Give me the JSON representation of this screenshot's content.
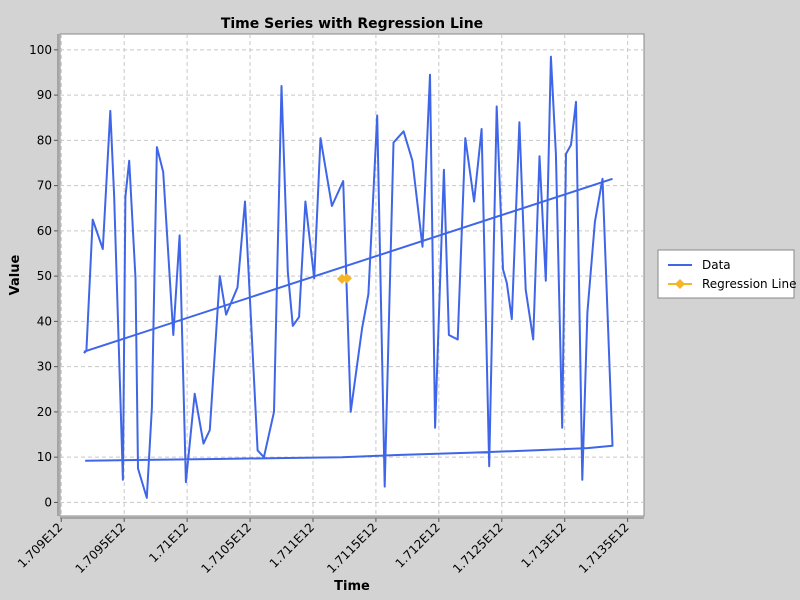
{
  "chart_data": {
    "type": "line",
    "title": "Time Series with Regression Line",
    "xlabel": "Time",
    "ylabel": "Value",
    "x_ticks": [
      "1.709E12",
      "1.7095E12",
      "1.71E12",
      "1.7105E12",
      "1.711E12",
      "1.7115E12",
      "1.712E12",
      "1.7125E12",
      "1.713E12",
      "1.7135E12"
    ],
    "x_tick_values": [
      1709000000000,
      1709500000000,
      1710000000000,
      1710500000000,
      1711000000000,
      1711500000000,
      1712000000000,
      1712500000000,
      1713000000000,
      1713500000000
    ],
    "y_ticks": [
      "0",
      "10",
      "20",
      "30",
      "40",
      "50",
      "60",
      "70",
      "80",
      "90",
      "100"
    ],
    "y_tick_values": [
      0,
      10,
      20,
      30,
      40,
      50,
      60,
      70,
      80,
      90,
      100
    ],
    "xlim": [
      1708990000000,
      1713630000000
    ],
    "ylim": [
      -3,
      103.5
    ],
    "grid": true,
    "legend_position": "right",
    "series": [
      {
        "name": "Data",
        "color": "#3f66e8",
        "x": [
          1709180000000,
          1709200000000,
          1709250000000,
          1709330000000,
          1709390000000,
          1709420000000,
          1709490000000,
          1709510000000,
          1709540000000,
          1709590000000,
          1709610000000,
          1709680000000,
          1709720000000,
          1709760000000,
          1709810000000,
          1709890000000,
          1709940000000,
          1709990000000,
          1710060000000,
          1710130000000,
          1710180000000,
          1710260000000,
          1710310000000,
          1710400000000,
          1710460000000,
          1710560000000,
          1710610000000,
          1710690000000,
          1710750000000,
          1710800000000,
          1710840000000,
          1710890000000,
          1710940000000,
          1711010000000,
          1711060000000,
          1711150000000,
          1711240000000,
          1711300000000,
          1711390000000,
          1711440000000,
          1711510000000,
          1711570000000,
          1711640000000,
          1711720000000,
          1711790000000,
          1711870000000,
          1711930000000,
          1711970000000,
          1712040000000,
          1712080000000,
          1712150000000,
          1712210000000,
          1712280000000,
          1712340000000,
          1712400000000,
          1712460000000,
          1712510000000,
          1712540000000,
          1712580000000,
          1712640000000,
          1712690000000,
          1712750000000,
          1712800000000,
          1712850000000,
          1712890000000,
          1712930000000,
          1712980000000,
          1713010000000,
          1713050000000,
          1713090000000,
          1713140000000,
          1713180000000,
          1713240000000,
          1713300000000,
          1713380000000,
          1713180000000,
          1712750000000,
          1712270000000,
          1711700000000,
          1711230000000,
          1710720000000,
          1710230000000,
          1709670000000,
          1709190000000
        ],
        "y": [
          33,
          33.5,
          62.5,
          56,
          86.5,
          68,
          5,
          67.5,
          75.5,
          49.5,
          7.5,
          1,
          21,
          78.5,
          73,
          37,
          59,
          4.5,
          24,
          13,
          16,
          50,
          41.5,
          47.5,
          66.5,
          11.5,
          10,
          20,
          92,
          51,
          39,
          41,
          66.5,
          49.5,
          80.5,
          65.5,
          71,
          20,
          38.5,
          46,
          85.5,
          3.5,
          79.5,
          82,
          75.5,
          56.5,
          94.5,
          16.5,
          73.5,
          37,
          36,
          80.5,
          66.5,
          82.5,
          8,
          87.5,
          51.5,
          48.5,
          40.5,
          84,
          47,
          36,
          76.5,
          49,
          98.5,
          77,
          16.5,
          77,
          79,
          88.5,
          5,
          42,
          62,
          71.5,
          12.5,
          12,
          11.5,
          11,
          10.5,
          10,
          9.8,
          9.6,
          9.4,
          9.2
        ]
      },
      {
        "name": "Regression Line",
        "color": "#f5b626",
        "x": [
          1711230000000,
          1711270000000
        ],
        "y": [
          49.4,
          49.5
        ]
      }
    ],
    "regression_drawn": {
      "x": [
        1709180000000,
        1713380000000
      ],
      "y": [
        33.3,
        71.5
      ]
    }
  }
}
